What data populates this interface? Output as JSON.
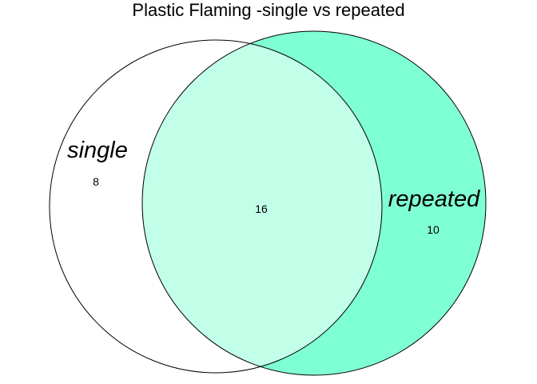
{
  "title": "Plastic Flaming -single vs repeated",
  "colors": {
    "background": "#ffffff",
    "outline": "#000000",
    "single_only_fill": "#ffffff",
    "repeated_only_fill": "#7fffd4",
    "overlap_fill": "#c1ffe9"
  },
  "chart_data": {
    "type": "venn",
    "title": "Plastic Flaming -single vs repeated",
    "sets": [
      {
        "name": "single",
        "only_count": 8
      },
      {
        "name": "repeated",
        "only_count": 10
      }
    ],
    "overlap": {
      "sets": [
        "single",
        "repeated"
      ],
      "count": 16
    },
    "counts": {
      "single_only": "8",
      "both": "16",
      "repeated_only": "10"
    }
  }
}
